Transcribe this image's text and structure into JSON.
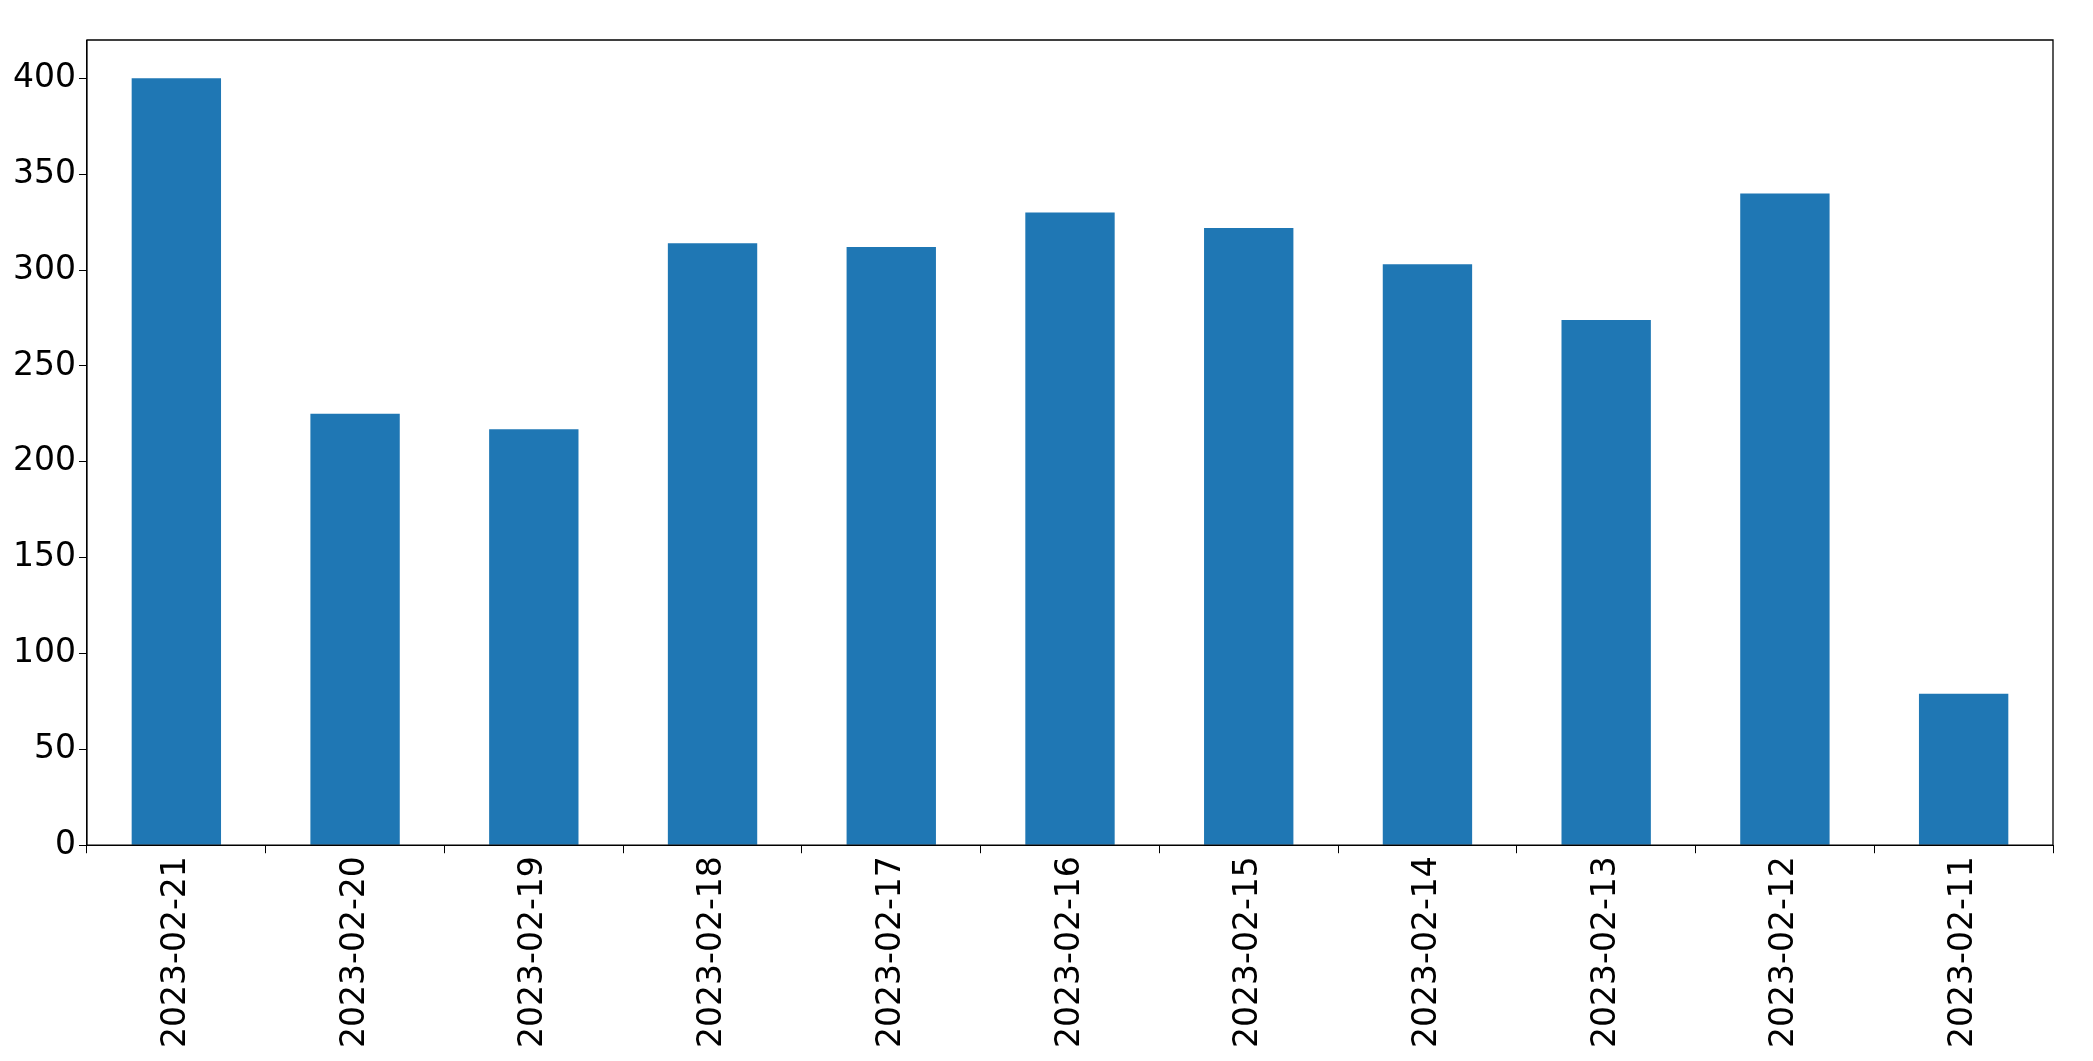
{
  "chart_data": {
    "type": "bar",
    "categories": [
      "2023-02-21",
      "2023-02-20",
      "2023-02-19",
      "2023-02-18",
      "2023-02-17",
      "2023-02-16",
      "2023-02-15",
      "2023-02-14",
      "2023-02-13",
      "2023-02-12",
      "2023-02-11"
    ],
    "values": [
      400,
      225,
      217,
      314,
      312,
      330,
      322,
      303,
      274,
      340,
      79
    ],
    "color": "#1f77b4",
    "ylim": [
      0,
      420
    ],
    "yticks": [
      0,
      50,
      100,
      150,
      200,
      250,
      300,
      350,
      400
    ],
    "grid": false
  }
}
